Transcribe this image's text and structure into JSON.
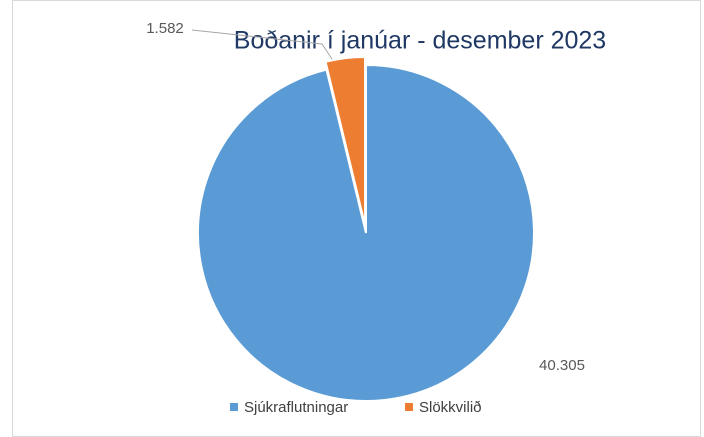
{
  "chart_data": {
    "type": "pie",
    "title": "Boðanir í janúar - desember 2023",
    "categories": [
      "Sjúkraflutningar",
      "Slökkvilið"
    ],
    "values": [
      40305,
      1582
    ],
    "value_labels": [
      "40.305",
      "1.582"
    ],
    "colors": [
      "#5b9bd5",
      "#ed7d31"
    ],
    "legend": "bottom"
  }
}
